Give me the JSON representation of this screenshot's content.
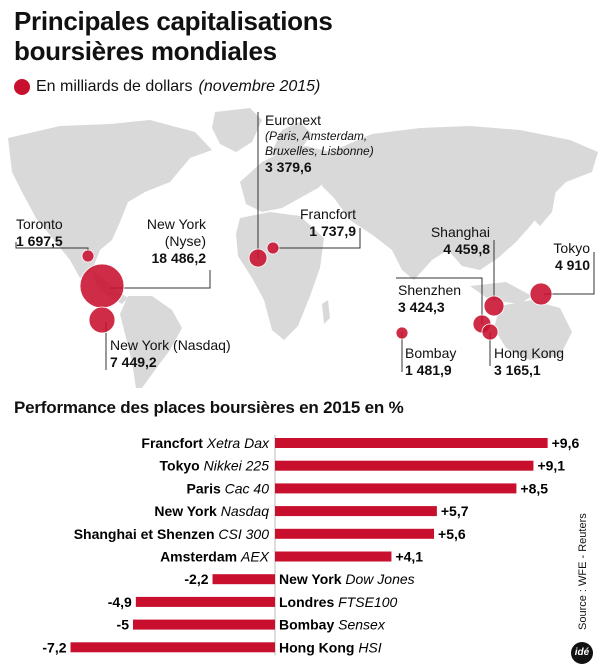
{
  "title_line1": "Principales capitalisations",
  "title_line2": "boursières mondiales",
  "subtitle_text": "En milliards de dollars",
  "subtitle_date": "(novembre 2015)",
  "accent_color": "#c8102e",
  "map_color": "#d9d9d9",
  "markets": {
    "toronto": {
      "name": "Toronto",
      "value": "1 697,5"
    },
    "nyse": {
      "name": "New York",
      "sub": "(Nyse)",
      "value": "18 486,2"
    },
    "nasdaq": {
      "name": "New York (Nasdaq)",
      "value": "7 449,2"
    },
    "euronext": {
      "name": "Euronext",
      "sub1": "(Paris, Amsterdam,",
      "sub2": "Bruxelles, Lisbonne)",
      "value": "3 379,6"
    },
    "francfort": {
      "name": "Francfort",
      "value": "1 737,9"
    },
    "shanghai": {
      "name": "Shanghai",
      "value": "4 459,8"
    },
    "tokyo": {
      "name": "Tokyo",
      "value": "4 910"
    },
    "shenzhen": {
      "name": "Shenzhen",
      "value": "3 424,3"
    },
    "bombay": {
      "name": "Bombay",
      "value": "1 481,9"
    },
    "hongkong": {
      "name": "Hong Kong",
      "value": "3 165,1"
    }
  },
  "perf_title": "Performance des places boursières en 2015 en %",
  "chart_data": {
    "type": "bar",
    "title": "Performance des places boursières en 2015 en %",
    "orientation": "horizontal",
    "categories": [
      {
        "place": "Francfort",
        "index": "Xetra Dax"
      },
      {
        "place": "Tokyo",
        "index": "Nikkei 225"
      },
      {
        "place": "Paris",
        "index": "Cac 40"
      },
      {
        "place": "New York",
        "index": "Nasdaq"
      },
      {
        "place": "Shanghai et Shenzen",
        "index": "CSI 300"
      },
      {
        "place": "Amsterdam",
        "index": "AEX"
      },
      {
        "place": "New York",
        "index": "Dow Jones"
      },
      {
        "place": "Londres",
        "index": "FTSE100"
      },
      {
        "place": "Bombay",
        "index": "Sensex"
      },
      {
        "place": "Hong Kong",
        "index": "HSI"
      }
    ],
    "values": [
      9.6,
      9.1,
      8.5,
      5.7,
      5.6,
      4.1,
      -2.2,
      -4.9,
      -5,
      -7.2
    ],
    "value_labels": [
      "+9,6",
      "+9,1",
      "+8,5",
      "+5,7",
      "+5,6",
      "+4,1",
      "-2,2",
      "-4,9",
      "-5",
      "-7,2"
    ]
  },
  "source": "Source : WFE - Reuters",
  "logo": "idé"
}
